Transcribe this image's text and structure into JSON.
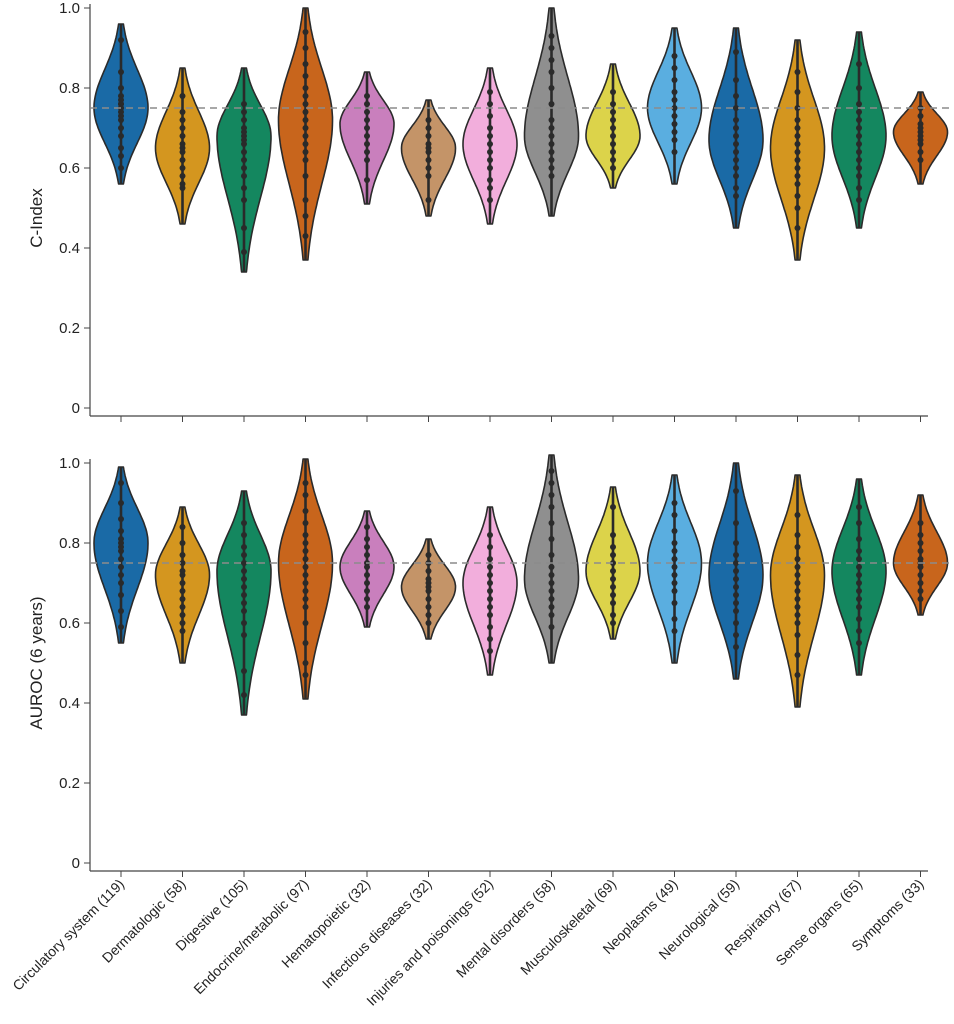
{
  "chart_data": [
    {
      "type": "violin",
      "ylabel": "C-Index",
      "ylim": [
        0,
        1.0
      ],
      "yticks": [
        "0",
        "0.2",
        "0.4",
        "0.6",
        "0.8",
        "1.0"
      ],
      "reference_line": 0.75,
      "categories": [
        "Circulatory system (119)",
        "Dermatologic (58)",
        "Digestive (105)",
        "Endocrine/metabolic (97)",
        "Hematopoietic (32)",
        "Infectious diseases (32)",
        "Injuries and poisonings (52)",
        "Mental disorders (58)",
        "Musculoskeletal (69)",
        "Neoplasms (49)",
        "Neurological (59)",
        "Respiratory (67)",
        "Sense organs (65)",
        "Symptoms (33)"
      ],
      "series": [
        {
          "min": 0.56,
          "max": 0.96,
          "median": 0.75,
          "points": [
            0.92,
            0.84,
            0.8,
            0.78,
            0.77,
            0.76,
            0.76,
            0.75,
            0.75,
            0.74,
            0.73,
            0.72,
            0.7,
            0.68,
            0.65,
            0.63,
            0.6
          ]
        },
        {
          "min": 0.46,
          "max": 0.85,
          "median": 0.65,
          "points": [
            0.78,
            0.74,
            0.72,
            0.7,
            0.68,
            0.66,
            0.65,
            0.64,
            0.62,
            0.6,
            0.58,
            0.56,
            0.55
          ]
        },
        {
          "min": 0.34,
          "max": 0.85,
          "median": 0.68,
          "points": [
            0.76,
            0.74,
            0.72,
            0.7,
            0.69,
            0.68,
            0.67,
            0.66,
            0.64,
            0.62,
            0.6,
            0.58,
            0.55,
            0.52,
            0.45,
            0.39
          ]
        },
        {
          "min": 0.37,
          "max": 1.0,
          "median": 0.72,
          "points": [
            0.94,
            0.9,
            0.86,
            0.83,
            0.8,
            0.78,
            0.76,
            0.74,
            0.72,
            0.7,
            0.68,
            0.66,
            0.64,
            0.62,
            0.58,
            0.52,
            0.48,
            0.43
          ]
        },
        {
          "min": 0.51,
          "max": 0.84,
          "median": 0.71,
          "points": [
            0.78,
            0.76,
            0.74,
            0.72,
            0.7,
            0.68,
            0.66,
            0.64,
            0.62,
            0.57
          ]
        },
        {
          "min": 0.48,
          "max": 0.77,
          "median": 0.65,
          "points": [
            0.72,
            0.7,
            0.68,
            0.66,
            0.65,
            0.64,
            0.62,
            0.6,
            0.58,
            0.52
          ]
        },
        {
          "min": 0.46,
          "max": 0.85,
          "median": 0.66,
          "points": [
            0.79,
            0.76,
            0.73,
            0.7,
            0.68,
            0.66,
            0.64,
            0.62,
            0.6,
            0.57,
            0.55,
            0.52
          ]
        },
        {
          "min": 0.48,
          "max": 1.0,
          "median": 0.68,
          "points": [
            0.93,
            0.9,
            0.87,
            0.84,
            0.8,
            0.76,
            0.72,
            0.7,
            0.68,
            0.66,
            0.64,
            0.62,
            0.6,
            0.58
          ]
        },
        {
          "min": 0.55,
          "max": 0.86,
          "median": 0.68,
          "points": [
            0.79,
            0.76,
            0.74,
            0.72,
            0.7,
            0.68,
            0.66,
            0.64,
            0.62,
            0.6
          ]
        },
        {
          "min": 0.56,
          "max": 0.95,
          "median": 0.75,
          "points": [
            0.88,
            0.85,
            0.82,
            0.79,
            0.77,
            0.75,
            0.73,
            0.71,
            0.69,
            0.67,
            0.64
          ]
        },
        {
          "min": 0.45,
          "max": 0.95,
          "median": 0.67,
          "points": [
            0.89,
            0.82,
            0.78,
            0.75,
            0.72,
            0.7,
            0.68,
            0.66,
            0.64,
            0.62,
            0.6,
            0.58,
            0.55,
            0.53
          ]
        },
        {
          "min": 0.37,
          "max": 0.92,
          "median": 0.65,
          "points": [
            0.84,
            0.79,
            0.75,
            0.72,
            0.7,
            0.68,
            0.66,
            0.64,
            0.62,
            0.6,
            0.58,
            0.56,
            0.53,
            0.5,
            0.45
          ]
        },
        {
          "min": 0.45,
          "max": 0.94,
          "median": 0.68,
          "points": [
            0.86,
            0.8,
            0.76,
            0.74,
            0.72,
            0.7,
            0.68,
            0.66,
            0.64,
            0.62,
            0.6,
            0.58,
            0.55,
            0.52
          ]
        },
        {
          "min": 0.56,
          "max": 0.79,
          "median": 0.69,
          "points": [
            0.75,
            0.73,
            0.71,
            0.7,
            0.69,
            0.68,
            0.67,
            0.66,
            0.64,
            0.62
          ]
        }
      ]
    },
    {
      "type": "violin",
      "ylabel": "AUROC (6 years)",
      "ylim": [
        0,
        1.0
      ],
      "yticks": [
        "0",
        "0.2",
        "0.4",
        "0.6",
        "0.8",
        "1.0"
      ],
      "reference_line": 0.75,
      "categories": [
        "Circulatory system (119)",
        "Dermatologic (58)",
        "Digestive (105)",
        "Endocrine/metabolic (97)",
        "Hematopoietic (32)",
        "Infectious diseases (32)",
        "Injuries and poisonings (52)",
        "Mental disorders (58)",
        "Musculoskeletal (69)",
        "Neoplasms (49)",
        "Neurological (59)",
        "Respiratory (67)",
        "Sense organs (65)",
        "Symptoms (33)"
      ],
      "series": [
        {
          "min": 0.55,
          "max": 0.99,
          "median": 0.8,
          "points": [
            0.95,
            0.9,
            0.86,
            0.83,
            0.81,
            0.8,
            0.79,
            0.78,
            0.76,
            0.74,
            0.72,
            0.7,
            0.67,
            0.63,
            0.59
          ]
        },
        {
          "min": 0.5,
          "max": 0.89,
          "median": 0.72,
          "points": [
            0.84,
            0.8,
            0.77,
            0.75,
            0.73,
            0.72,
            0.7,
            0.68,
            0.66,
            0.64,
            0.62,
            0.6,
            0.58
          ]
        },
        {
          "min": 0.37,
          "max": 0.93,
          "median": 0.73,
          "points": [
            0.85,
            0.82,
            0.79,
            0.77,
            0.75,
            0.73,
            0.71,
            0.69,
            0.67,
            0.65,
            0.63,
            0.6,
            0.57,
            0.48,
            0.42
          ]
        },
        {
          "min": 0.41,
          "max": 1.01,
          "median": 0.75,
          "points": [
            0.95,
            0.92,
            0.88,
            0.85,
            0.82,
            0.8,
            0.78,
            0.76,
            0.74,
            0.72,
            0.7,
            0.68,
            0.66,
            0.64,
            0.6,
            0.55,
            0.5,
            0.47
          ]
        },
        {
          "min": 0.59,
          "max": 0.88,
          "median": 0.74,
          "points": [
            0.84,
            0.81,
            0.79,
            0.77,
            0.75,
            0.74,
            0.72,
            0.7,
            0.68,
            0.66,
            0.64
          ]
        },
        {
          "min": 0.56,
          "max": 0.81,
          "median": 0.69,
          "points": [
            0.77,
            0.75,
            0.73,
            0.71,
            0.7,
            0.69,
            0.68,
            0.66,
            0.64,
            0.62,
            0.6
          ]
        },
        {
          "min": 0.47,
          "max": 0.89,
          "median": 0.7,
          "points": [
            0.82,
            0.79,
            0.76,
            0.74,
            0.72,
            0.7,
            0.68,
            0.66,
            0.64,
            0.62,
            0.59,
            0.56,
            0.53
          ]
        },
        {
          "min": 0.5,
          "max": 1.02,
          "median": 0.71,
          "points": [
            0.98,
            0.95,
            0.92,
            0.89,
            0.85,
            0.81,
            0.77,
            0.74,
            0.72,
            0.7,
            0.68,
            0.66,
            0.64,
            0.62,
            0.59
          ]
        },
        {
          "min": 0.56,
          "max": 0.94,
          "median": 0.73,
          "points": [
            0.89,
            0.82,
            0.79,
            0.77,
            0.75,
            0.73,
            0.71,
            0.69,
            0.67,
            0.65,
            0.62,
            0.6
          ]
        },
        {
          "min": 0.5,
          "max": 0.97,
          "median": 0.75,
          "points": [
            0.9,
            0.87,
            0.83,
            0.8,
            0.78,
            0.76,
            0.74,
            0.72,
            0.7,
            0.68,
            0.65,
            0.61,
            0.58
          ]
        },
        {
          "min": 0.46,
          "max": 1.0,
          "median": 0.72,
          "points": [
            0.93,
            0.85,
            0.8,
            0.77,
            0.75,
            0.73,
            0.71,
            0.69,
            0.67,
            0.65,
            0.63,
            0.6,
            0.57,
            0.54
          ]
        },
        {
          "min": 0.39,
          "max": 0.97,
          "median": 0.72,
          "points": [
            0.87,
            0.82,
            0.79,
            0.76,
            0.74,
            0.72,
            0.7,
            0.68,
            0.66,
            0.64,
            0.62,
            0.6,
            0.57,
            0.52,
            0.47
          ]
        },
        {
          "min": 0.47,
          "max": 0.96,
          "median": 0.73,
          "points": [
            0.89,
            0.85,
            0.81,
            0.78,
            0.76,
            0.74,
            0.72,
            0.7,
            0.68,
            0.66,
            0.64,
            0.61,
            0.58,
            0.55
          ]
        },
        {
          "min": 0.62,
          "max": 0.92,
          "median": 0.75,
          "points": [
            0.85,
            0.82,
            0.8,
            0.78,
            0.76,
            0.75,
            0.74,
            0.72,
            0.7,
            0.68,
            0.66
          ]
        }
      ]
    }
  ],
  "colors": [
    "#1a6aa6",
    "#d4961f",
    "#14875f",
    "#c8651c",
    "#c97fbd",
    "#c49468",
    "#f2aedc",
    "#8f8f8f",
    "#dcd34a",
    "#5aaee0",
    "#1a6aa6",
    "#d4961f",
    "#14875f",
    "#c8651c"
  ],
  "styles": {
    "outline": "#2b2b2b",
    "dot": "#2a2a2a",
    "refline": "#8c8c8c"
  }
}
